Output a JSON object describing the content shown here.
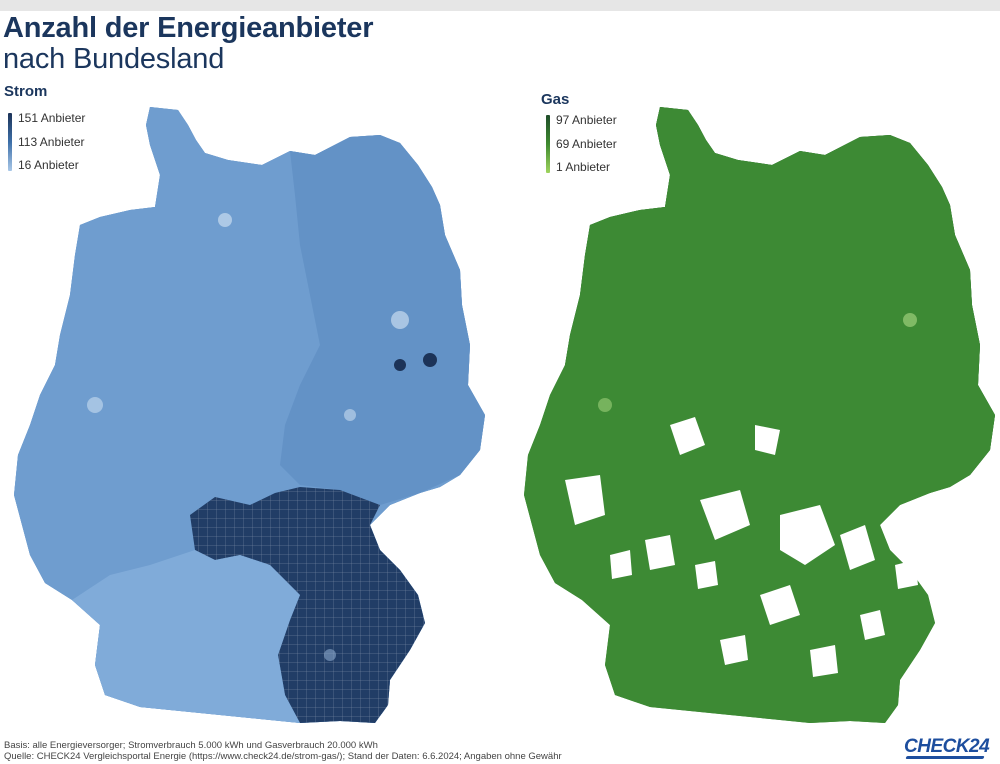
{
  "title": {
    "line1": "Anzahl der Energieanbieter",
    "line2": "nach Bundesland"
  },
  "strom": {
    "label": "Strom",
    "legend": [
      "151 Anbieter",
      "113 Anbieter",
      "16 Anbieter"
    ],
    "colors": {
      "dark": "#1c3358",
      "mid": "#3d6fa8",
      "light": "#8fb6df"
    }
  },
  "gas": {
    "label": "Gas",
    "legend": [
      "97 Anbieter",
      "69 Anbieter",
      "1 Anbieter"
    ],
    "colors": {
      "dark": "#1f4d2a",
      "mid": "#3f8a2f",
      "light": "#8ec954"
    }
  },
  "footer": {
    "line1": "Basis: alle Energieversorger; Stromverbrauch 5.000 kWh und Gasverbrauch 20.000 kWh",
    "line2": "Quelle: CHECK24 Vergleichsportal Energie (https://www.check24.de/strom-gas/); Stand der Daten: 6.6.2024; Angaben ohne Gewähr"
  },
  "logo": "CHECK24"
}
